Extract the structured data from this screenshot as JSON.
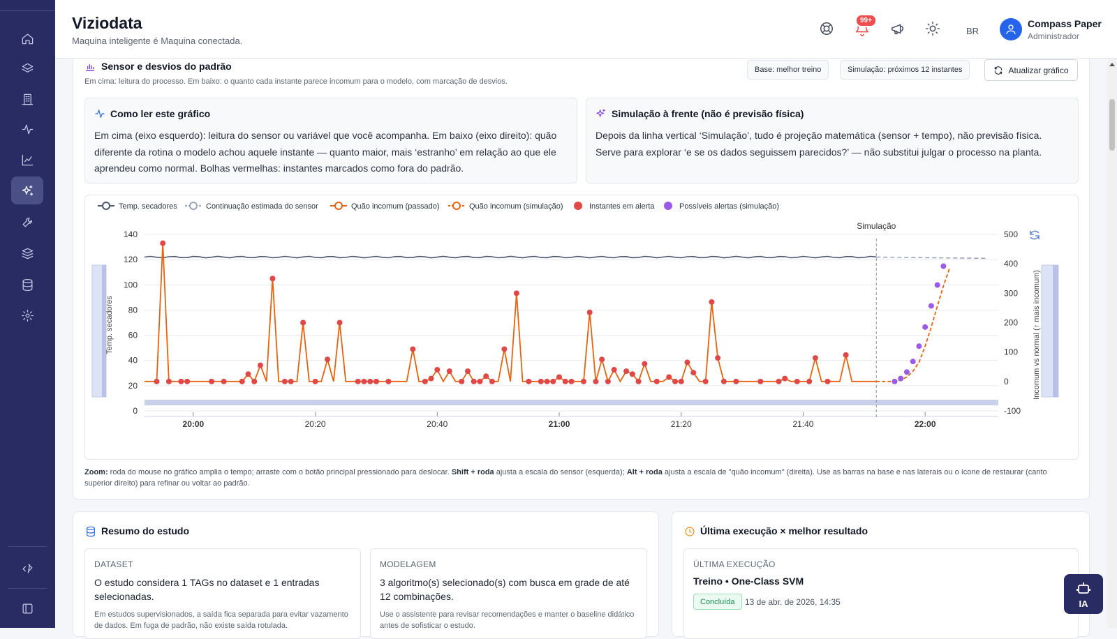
{
  "sidebar": {
    "items": [
      "home",
      "layers",
      "building",
      "activity",
      "chart",
      "sparkles",
      "wrench",
      "stack",
      "database",
      "settings"
    ],
    "active_index": 5,
    "bottom": [
      "deploy",
      "panel"
    ]
  },
  "header": {
    "title": "Viziodata",
    "subtitle": "Maquina inteligente é Maquina conectada.",
    "notifications_badge": "99+",
    "language": "BR",
    "user_name": "Compass Paper",
    "user_role": "Administrador"
  },
  "section": {
    "title": "Sensor e desvios do padrão",
    "description": "Em cima: leitura do processo. Em baixo: o quanto cada instante parece incomum para o modelo, com marcação de desvios.",
    "chip_base": "Base: melhor treino",
    "chip_sim": "Simulação: próximos 12 instantes",
    "refresh_label": "Atualizar gráfico"
  },
  "info": {
    "read_title": "Como ler este gráfico",
    "read_text": "Em cima (eixo esquerdo): leitura do sensor ou variável que você acompanha. Em baixo (eixo direito): quão diferente da rotina o modelo achou aquele instante — quanto maior, mais ‘estranho’ em relação ao que ele aprendeu como normal. Bolhas vermelhas: instantes marcados como fora do padrão.",
    "sim_title": "Simulação à frente (não é previsão física)",
    "sim_text": "Depois da linha vertical ‘Simulação’, tudo é projeção matemática (sensor + tempo), não previsão física. Serve para explorar ‘e se os dados seguissem parecidos?’ — não substitui julgar o processo na planta."
  },
  "chart_data": {
    "type": "line",
    "legend": [
      "Temp. secadores",
      "Continuação estimada do sensor",
      "Quão incomum (passado)",
      "Quão incomum (simulação)",
      "Instantes em alerta",
      "Possíveis alertas (simulação)"
    ],
    "simulation_label": "Simulação",
    "ylabel_left": "Temp. secadores",
    "ylabel_right": "Incomum vs normal (↑ mais incomum)",
    "y_left_ticks": [
      "0",
      "20",
      "40",
      "60",
      "80",
      "100",
      "120",
      "140"
    ],
    "y_right_ticks": [
      "-100",
      "0",
      "100",
      "200",
      "300",
      "400",
      "500"
    ],
    "x_ticks": [
      "20:00",
      "20:20",
      "20:40",
      "21:00",
      "21:20",
      "21:40",
      "22:00"
    ],
    "x_ticks_bold": [
      true,
      false,
      false,
      true,
      false,
      false,
      true
    ],
    "ylim_left": [
      0,
      140
    ],
    "ylim_right": [
      -100,
      500
    ],
    "xlim_minutes": [
      -8,
      132
    ],
    "simulation_start_minute": 112,
    "sensor": {
      "start": -8,
      "end": 112,
      "value": 122
    },
    "sensor_continuation": {
      "start": 112,
      "end": 130,
      "value": 121
    },
    "anomaly_past": [
      [
        -8,
        0
      ],
      [
        -6,
        0
      ],
      [
        -5,
        470
      ],
      [
        -4,
        0
      ],
      [
        -2,
        0
      ],
      [
        -1,
        5
      ],
      [
        0,
        0
      ],
      [
        1,
        0
      ],
      [
        2,
        0
      ],
      [
        3,
        5
      ],
      [
        4,
        0
      ],
      [
        5,
        0
      ],
      [
        6,
        13
      ],
      [
        7,
        0
      ],
      [
        8,
        0
      ],
      [
        9,
        25
      ],
      [
        10,
        0
      ],
      [
        12,
        0
      ],
      [
        14,
        0
      ],
      [
        16,
        0
      ],
      [
        17,
        0
      ],
      [
        18,
        0
      ],
      [
        19,
        0
      ],
      [
        20,
        0
      ],
      [
        21,
        0
      ],
      [
        22,
        0
      ],
      [
        23,
        0
      ],
      [
        24,
        0
      ],
      [
        25,
        0
      ],
      [
        26,
        0
      ],
      [
        27,
        0
      ],
      [
        29,
        0
      ],
      [
        30,
        0
      ],
      [
        32,
        0
      ],
      [
        33,
        0
      ],
      [
        34,
        0
      ],
      [
        35,
        0
      ],
      [
        36,
        0
      ],
      [
        37,
        0
      ],
      [
        38,
        0
      ],
      [
        39,
        0
      ],
      [
        40,
        0
      ],
      [
        41,
        0
      ],
      [
        42,
        0
      ],
      [
        43,
        0
      ],
      [
        44,
        0
      ],
      [
        45,
        0
      ],
      [
        46,
        0
      ],
      [
        47,
        0
      ],
      [
        48,
        0
      ],
      [
        49,
        0
      ],
      [
        50,
        0
      ],
      [
        51,
        0
      ],
      [
        52,
        0
      ],
      [
        53,
        0
      ],
      [
        54,
        0
      ],
      [
        55,
        0
      ],
      [
        56,
        0
      ],
      [
        57,
        0
      ],
      [
        58,
        0
      ],
      [
        59,
        0
      ],
      [
        60,
        0
      ],
      [
        61,
        0
      ],
      [
        62,
        0
      ],
      [
        63,
        0
      ],
      [
        64,
        0
      ],
      [
        65,
        0
      ],
      [
        66,
        0
      ],
      [
        67,
        0
      ],
      [
        68,
        0
      ],
      [
        69,
        0
      ],
      [
        70,
        0
      ],
      [
        71,
        0
      ],
      [
        72,
        0
      ],
      [
        73,
        0
      ],
      [
        74,
        0
      ],
      [
        75,
        0
      ],
      [
        76,
        0
      ],
      [
        77,
        0
      ],
      [
        78,
        0
      ],
      [
        79,
        0
      ],
      [
        80,
        0
      ],
      [
        81,
        0
      ],
      [
        82,
        0
      ],
      [
        83,
        0
      ],
      [
        84,
        0
      ],
      [
        85,
        0
      ],
      [
        86,
        0
      ],
      [
        87,
        0
      ],
      [
        88,
        0
      ],
      [
        89,
        0
      ],
      [
        90,
        0
      ],
      [
        91,
        0
      ],
      [
        92,
        0
      ],
      [
        93,
        0
      ],
      [
        94,
        0
      ],
      [
        95,
        0
      ],
      [
        96,
        0
      ],
      [
        97,
        0
      ],
      [
        98,
        0
      ],
      [
        99,
        0
      ],
      [
        100,
        0
      ],
      [
        101,
        0
      ],
      [
        102,
        0
      ],
      [
        103,
        0
      ],
      [
        104,
        0
      ],
      [
        105,
        0
      ],
      [
        106,
        0
      ],
      [
        107,
        0
      ],
      [
        108,
        0
      ],
      [
        109,
        0
      ],
      [
        110,
        0
      ],
      [
        111,
        0
      ],
      [
        112,
        0
      ]
    ],
    "anomaly_past_points": [
      [
        -8,
        0
      ],
      [
        -6,
        0
      ],
      [
        -5,
        470
      ],
      [
        -4,
        0
      ],
      [
        -2,
        5
      ],
      [
        -1,
        0
      ],
      [
        0,
        0
      ],
      [
        1,
        3
      ],
      [
        2,
        0
      ],
      [
        3,
        10
      ],
      [
        4,
        -2
      ],
      [
        5,
        25
      ],
      [
        6,
        0
      ],
      [
        8,
        0
      ],
      [
        10,
        0
      ],
      [
        11,
        0
      ],
      [
        12,
        0
      ],
      [
        13,
        0
      ],
      [
        14,
        55
      ],
      [
        15,
        0
      ],
      [
        16,
        0
      ],
      [
        17,
        320
      ],
      [
        18,
        0
      ],
      [
        19,
        0
      ],
      [
        20,
        0
      ],
      [
        21,
        10
      ],
      [
        22,
        0
      ],
      [
        24,
        0
      ],
      [
        26,
        0
      ],
      [
        27,
        0
      ],
      [
        28,
        0
      ],
      [
        30,
        0
      ],
      [
        31,
        0
      ],
      [
        32,
        0
      ],
      [
        35,
        0
      ],
      [
        36,
        0
      ],
      [
        38,
        0
      ],
      [
        39,
        0
      ],
      [
        41,
        0
      ],
      [
        42,
        0
      ],
      [
        44,
        0
      ],
      [
        45,
        0
      ],
      [
        46,
        0
      ],
      [
        47,
        0
      ],
      [
        48,
        0
      ],
      [
        49,
        0
      ],
      [
        50,
        0
      ],
      [
        51,
        0
      ],
      [
        52,
        0
      ],
      [
        53,
        0
      ],
      [
        54,
        0
      ],
      [
        55,
        0
      ],
      [
        56,
        0
      ],
      [
        57,
        0
      ]
    ],
    "anomaly_sim": [
      [
        112,
        0
      ],
      [
        114,
        0
      ],
      [
        115,
        0
      ],
      [
        116,
        5
      ],
      [
        117,
        15
      ],
      [
        118,
        35
      ],
      [
        119,
        65
      ],
      [
        120,
        120
      ],
      [
        121,
        185
      ],
      [
        122,
        255
      ],
      [
        123,
        325
      ],
      [
        124,
        385
      ]
    ],
    "alert_points_sim": [
      [
        115,
        0
      ],
      [
        116,
        10
      ],
      [
        117,
        32
      ],
      [
        118,
        68
      ],
      [
        119,
        120
      ],
      [
        120,
        185
      ],
      [
        121,
        257
      ],
      [
        122,
        328
      ],
      [
        123,
        392
      ]
    ]
  },
  "zoom_help": {
    "label": "Zoom:",
    "t1": " roda do mouse no gráfico amplia o tempo; arraste com o botão principal pressionado para deslocar. ",
    "k1": "Shift + roda",
    "t2": " ajusta a escala do sensor (esquerda); ",
    "k2": "Alt + roda",
    "t3": " ajusta a escala de \"quão incomum\" (direita). Use as barras na base e nas laterais ou o ícone de restaurar (canto superior direito) para refinar ou voltar ao padrão."
  },
  "summary": {
    "title": "Resumo do estudo",
    "dataset_head": "DATASET",
    "dataset_text": "O estudo considera 1 TAGs no dataset e 1 entradas selecionadas.",
    "dataset_small": "Em estudos supervisionados, a saída fica separada para evitar vazamento de dados. Em fuga de padrão, não existe saída rotulada.",
    "model_head": "MODELAGEM",
    "model_text": "3 algoritmo(s) selecionado(s) com busca em grade de até 12 combinações.",
    "model_small": "Use o assistente para revisar recomendações e manter o baseline didático antes de sofisticar o estudo."
  },
  "execution": {
    "title": "Última execução × melhor resultado",
    "head": "ÚLTIMA EXECUÇÃO",
    "main": "Treino • One-Class SVM",
    "status": "Concluída",
    "date": "13 de abr. de 2026, 14:35"
  },
  "ia_label": "IA",
  "colors": {
    "sidebar": "#282c63",
    "accent": "#2563eb",
    "sensor": "#4b5670",
    "anomaly": "#e8620f",
    "alert": "#e04848",
    "sim_alert": "#9a5ce6"
  }
}
